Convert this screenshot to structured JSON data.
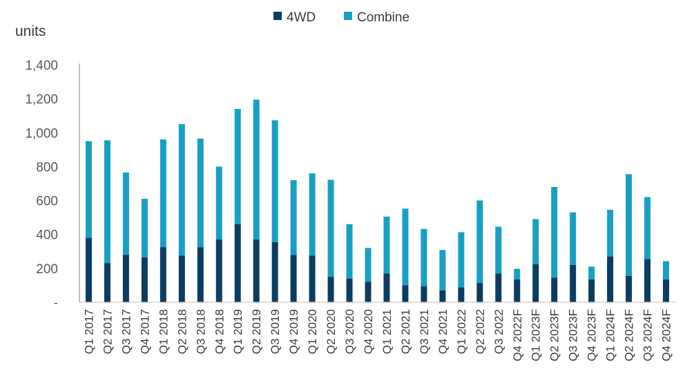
{
  "chart_data": {
    "type": "bar",
    "stacked": true,
    "unit_label": "units",
    "categories": [
      "Q1 2017",
      "Q2 2017",
      "Q3 2017",
      "Q4 2017",
      "Q1 2018",
      "Q2 2018",
      "Q3 2018",
      "Q4 2018",
      "Q1 2019",
      "Q2 2019",
      "Q3 2019",
      "Q4 2019",
      "Q1 2020",
      "Q2 2020",
      "Q3 2020",
      "Q4 2020",
      "Q1 2021",
      "Q2 2021",
      "Q3 2021",
      "Q4 2021",
      "Q1 2022",
      "Q2 2022",
      "Q3 2022",
      "Q4 2022F",
      "Q1 2023F",
      "Q2 2023F",
      "Q3 2023F",
      "Q4 2023F",
      "Q1 2024F",
      "Q2 2024F",
      "Q3 2024F",
      "Q4 2024F"
    ],
    "series": [
      {
        "name": "4WD",
        "color": "#0b3c61",
        "values": [
          380,
          230,
          280,
          265,
          325,
          275,
          325,
          370,
          460,
          370,
          355,
          280,
          275,
          150,
          140,
          120,
          170,
          100,
          95,
          70,
          88,
          115,
          170,
          135,
          225,
          145,
          220,
          135,
          270,
          155,
          255,
          135
        ]
      },
      {
        "name": "Combine",
        "color": "#18a0c4",
        "values": [
          570,
          725,
          485,
          345,
          635,
          775,
          640,
          430,
          680,
          825,
          718,
          440,
          485,
          572,
          320,
          200,
          335,
          452,
          337,
          238,
          325,
          485,
          275,
          62,
          265,
          535,
          310,
          75,
          275,
          600,
          365,
          107
        ]
      }
    ],
    "ylim": [
      0,
      1400
    ],
    "yticks": [
      0,
      200,
      400,
      600,
      800,
      1000,
      1200,
      1400
    ],
    "ytick_labels": [
      "-",
      "200",
      "400",
      "600",
      "800",
      "1,000",
      "1,200",
      "1,400"
    ],
    "legend_position": "top-center",
    "grid": false
  }
}
